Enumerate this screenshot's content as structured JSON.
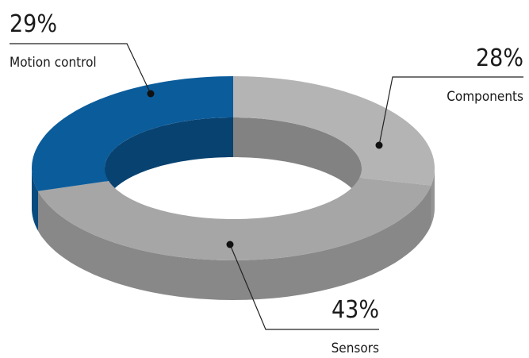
{
  "chart_data": {
    "type": "donut",
    "categories": [
      "Components",
      "Sensors",
      "Motion control"
    ],
    "values": [
      28,
      43,
      29
    ],
    "value_labels": [
      "28%",
      "43%",
      "29%"
    ],
    "colors": [
      "#b4b4b4",
      "#a6a6a6",
      "#0b5c9b"
    ]
  }
}
